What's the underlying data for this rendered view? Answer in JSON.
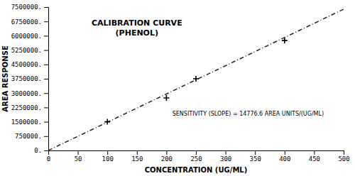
{
  "chart_data": {
    "type": "scatter",
    "title": "CALIBRATION CURVE",
    "subtitle": "(PHENOL)",
    "x_label": "CONCENTRATION (UG/ML)",
    "y_label": "AREA RESPONSE",
    "annotations": [
      "SENSITIVITY (SLOPE) = 14776.6 AREA UNITS/(UG/ML)"
    ],
    "series": [
      {
        "type": "line",
        "x": [
          0,
          500
        ],
        "values": [
          0,
          7388000
        ],
        "color": "#222222",
        "line_style": "dashdot"
      },
      {
        "type": "scatter",
        "x": [
          100,
          200,
          250,
          400
        ],
        "values": [
          1500000,
          2750000,
          3750000,
          5750000
        ],
        "color": "#000000",
        "marker": "plus"
      }
    ],
    "xlim": [
      0,
      500
    ],
    "ylim": [
      0,
      7500000
    ],
    "xticks": [
      0,
      50,
      100,
      150,
      200,
      250,
      300,
      350,
      400,
      450,
      500
    ],
    "yticks": [
      {
        "value": 0,
        "label": "0."
      },
      {
        "value": 750000,
        "label": "750000."
      },
      {
        "value": 1500000,
        "label": "1500000."
      },
      {
        "value": 2250000,
        "label": "2250000."
      },
      {
        "value": 3000000,
        "label": "3000000."
      },
      {
        "value": 3750000,
        "label": "3750000."
      },
      {
        "value": 4500000,
        "label": "4500000."
      },
      {
        "value": 5250000,
        "label": "5250000."
      },
      {
        "value": 6000000,
        "label": "6000000."
      },
      {
        "value": 6750000,
        "label": "6750000."
      },
      {
        "value": 7500000,
        "label": "7500000."
      }
    ],
    "grid": false
  }
}
